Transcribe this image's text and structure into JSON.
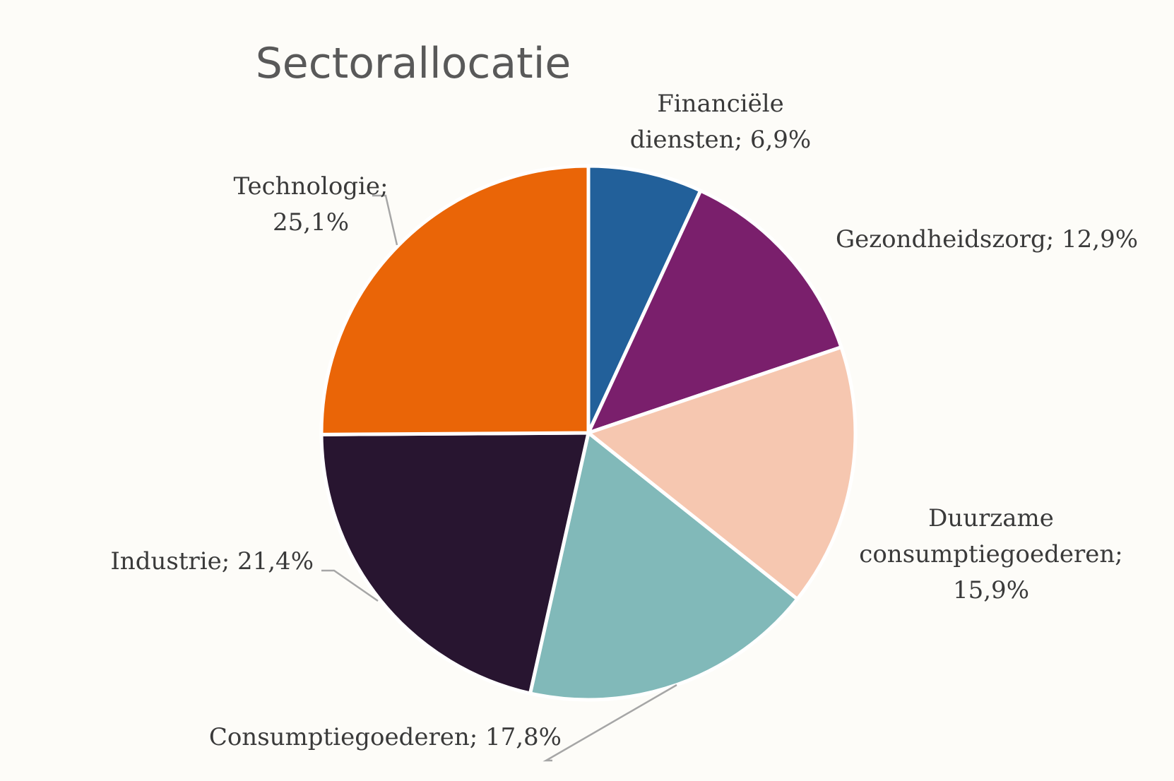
{
  "chart_data": {
    "type": "pie",
    "title": "Sectorallocatie",
    "start_angle_deg": 0,
    "direction": "clockwise",
    "slices": [
      {
        "name": "Financiële diensten",
        "value": 6.9,
        "label_lines": [
          "Financiële",
          "diensten; 6,9%"
        ],
        "color": "#22609a"
      },
      {
        "name": "Gezondheidszorg",
        "value": 12.9,
        "label_lines": [
          "Gezondheidszorg; 12,9%"
        ],
        "color": "#7a1f6c"
      },
      {
        "name": "Duurzame consumptiegoederen",
        "value": 15.9,
        "label_lines": [
          "Duurzame",
          "consumptiegoederen;",
          "15,9%"
        ],
        "color": "#f6c7b0"
      },
      {
        "name": "Consumptiegoederen",
        "value": 17.8,
        "label_lines": [
          "Consumptiegoederen; 17,8%"
        ],
        "color": "#81b9b9"
      },
      {
        "name": "Industrie",
        "value": 21.4,
        "label_lines": [
          "Industrie; 21,4%"
        ],
        "color": "#281530"
      },
      {
        "name": "Technologie",
        "value": 25.1,
        "label_lines": [
          "Technologie;",
          "25,1%"
        ],
        "color": "#ea6507"
      }
    ]
  }
}
